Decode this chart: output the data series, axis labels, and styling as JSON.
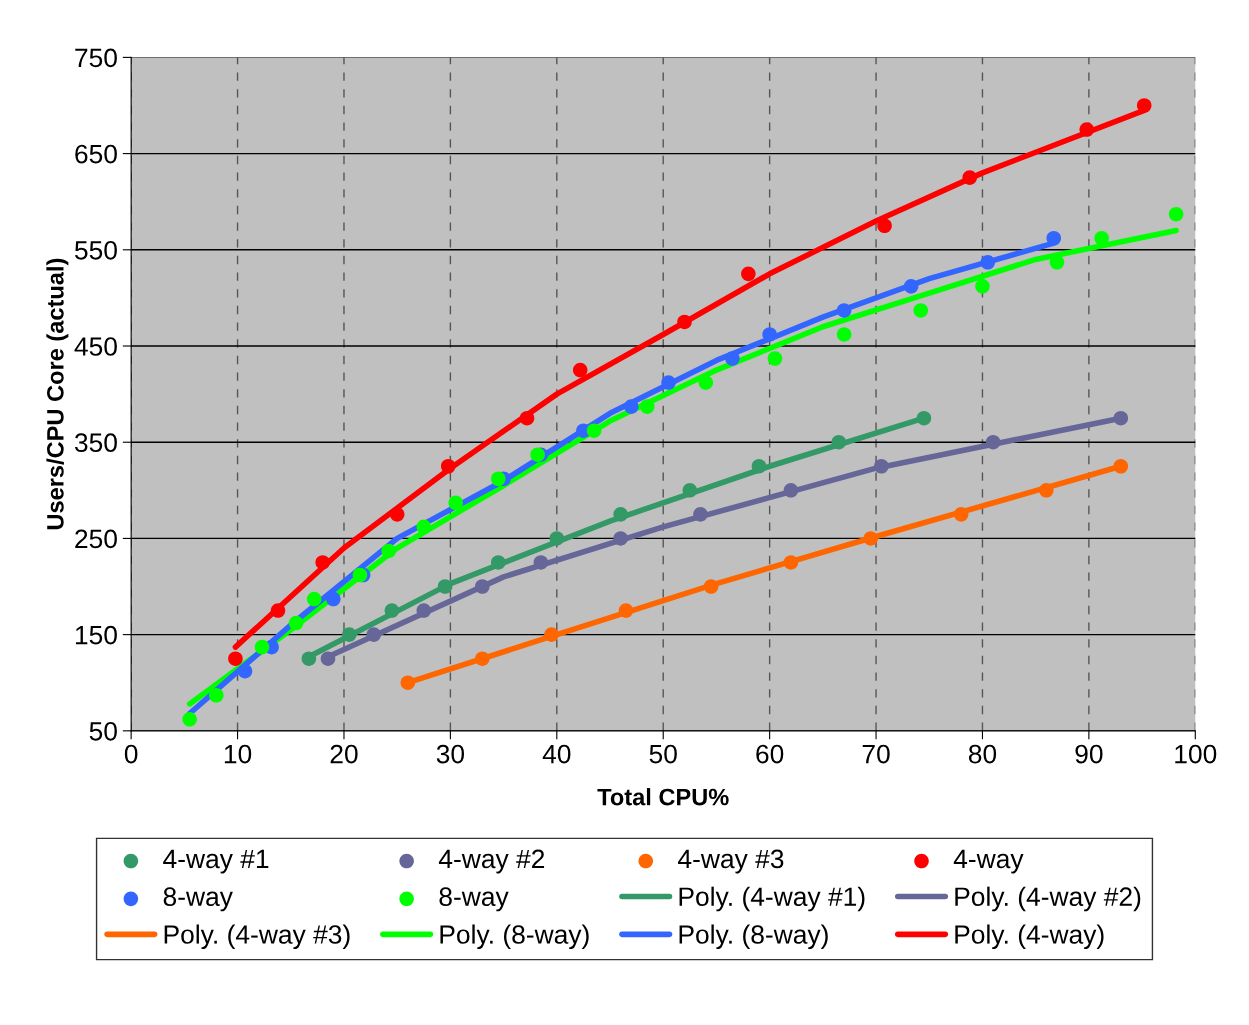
{
  "chart_data": {
    "type": "scatter",
    "xlabel": "Total CPU%",
    "ylabel": "Users/CPU Core (actual)",
    "xlim": [
      0,
      100
    ],
    "ylim": [
      50,
      750
    ],
    "xticks": [
      0,
      10,
      20,
      30,
      40,
      50,
      60,
      70,
      80,
      90,
      100
    ],
    "yticks": [
      50,
      150,
      250,
      350,
      450,
      550,
      650,
      750
    ],
    "grid": true,
    "legend": "bottom",
    "series": [
      {
        "name": "4-way #1",
        "marker": "circle",
        "color": "#339966",
        "x": [
          16.7,
          20.5,
          24.5,
          29.5,
          34.5,
          40,
          46,
          52.5,
          59,
          66.5,
          74.5
        ],
        "values": [
          125,
          150,
          175,
          200,
          225,
          250,
          275,
          300,
          325,
          350,
          375
        ]
      },
      {
        "name": "4-way #2",
        "marker": "circle",
        "color": "#666699",
        "x": [
          18.5,
          22.8,
          27.5,
          33,
          38.5,
          46,
          53.5,
          62,
          70.5,
          81,
          93
        ],
        "values": [
          125,
          150,
          175,
          200,
          225,
          250,
          275,
          300,
          325,
          350,
          375
        ]
      },
      {
        "name": "4-way #3",
        "marker": "circle",
        "color": "#ff6600",
        "x": [
          26,
          33,
          39.5,
          46.5,
          54.5,
          62,
          69.5,
          78,
          86,
          93
        ],
        "values": [
          100,
          125,
          150,
          175,
          200,
          225,
          250,
          275,
          300,
          325
        ]
      },
      {
        "name": "4-way",
        "marker": "circle",
        "color": "#ff0000",
        "x": [
          9.8,
          13.8,
          18,
          25,
          29.8,
          37.2,
          42.2,
          52,
          58,
          70.8,
          78.8,
          89.8,
          95.2
        ],
        "values": [
          125,
          175,
          225,
          275,
          325,
          375,
          425,
          475,
          525,
          575,
          625,
          675,
          700
        ]
      },
      {
        "name": "8-way",
        "marker": "circle",
        "color": "#3366ff",
        "x": [
          10.7,
          13.2,
          19,
          21.8,
          35,
          38.5,
          42.5,
          47,
          50.5,
          56.5,
          60,
          67,
          73.3,
          80.5,
          86.7
        ],
        "values": [
          112,
          137,
          187,
          212,
          312,
          337,
          362,
          387,
          412,
          437,
          462,
          487,
          512,
          537,
          562
        ]
      },
      {
        "name": "8-way",
        "marker": "circle",
        "color": "#00ff00",
        "x": [
          5.5,
          8,
          12.3,
          15.5,
          17.2,
          21.5,
          24.2,
          27.5,
          30.5,
          34.5,
          38.2,
          43.5,
          48.5,
          54,
          60.5,
          67,
          74.2,
          80,
          87,
          91.2,
          98.2
        ],
        "values": [
          62,
          87,
          137,
          162,
          187,
          212,
          237,
          262,
          287,
          312,
          337,
          362,
          387,
          412,
          437,
          462,
          487,
          512,
          537,
          562,
          587
        ]
      },
      {
        "name": "Poly. (4-way #1)",
        "type": "line",
        "color": "#339966",
        "x": [
          16.7,
          30,
          45,
          60,
          74.5
        ],
        "values": [
          127,
          203,
          268,
          325,
          375
        ]
      },
      {
        "name": "Poly. (4-way #2)",
        "type": "line",
        "color": "#666699",
        "x": [
          18.5,
          35,
          50,
          70,
          93
        ],
        "values": [
          127,
          210,
          262,
          323,
          375
        ]
      },
      {
        "name": "Poly. (4-way #3)",
        "type": "line",
        "color": "#ff6600",
        "x": [
          26,
          40,
          55,
          70,
          93
        ],
        "values": [
          100,
          150,
          203,
          252,
          325
        ]
      },
      {
        "name": "Poly. (8-way)",
        "type": "line",
        "color": "#00ff00",
        "x": [
          5.5,
          15,
          25,
          35,
          45,
          55,
          65,
          75,
          85,
          98.2
        ],
        "values": [
          78,
          155,
          240,
          305,
          372,
          425,
          470,
          505,
          540,
          570
        ]
      },
      {
        "name": "Poly. (8-way)",
        "type": "line",
        "color": "#3366ff",
        "x": [
          5.5,
          15,
          25,
          35,
          45,
          55,
          65,
          75,
          86.7
        ],
        "values": [
          68,
          160,
          250,
          310,
          380,
          435,
          480,
          520,
          557
        ]
      },
      {
        "name": "Poly. (4-way)",
        "type": "line",
        "color": "#ff0000",
        "x": [
          9.8,
          20,
          30,
          40,
          50,
          60,
          70,
          80,
          95.2
        ],
        "values": [
          137,
          240,
          323,
          400,
          462,
          525,
          580,
          630,
          695
        ]
      }
    ]
  }
}
